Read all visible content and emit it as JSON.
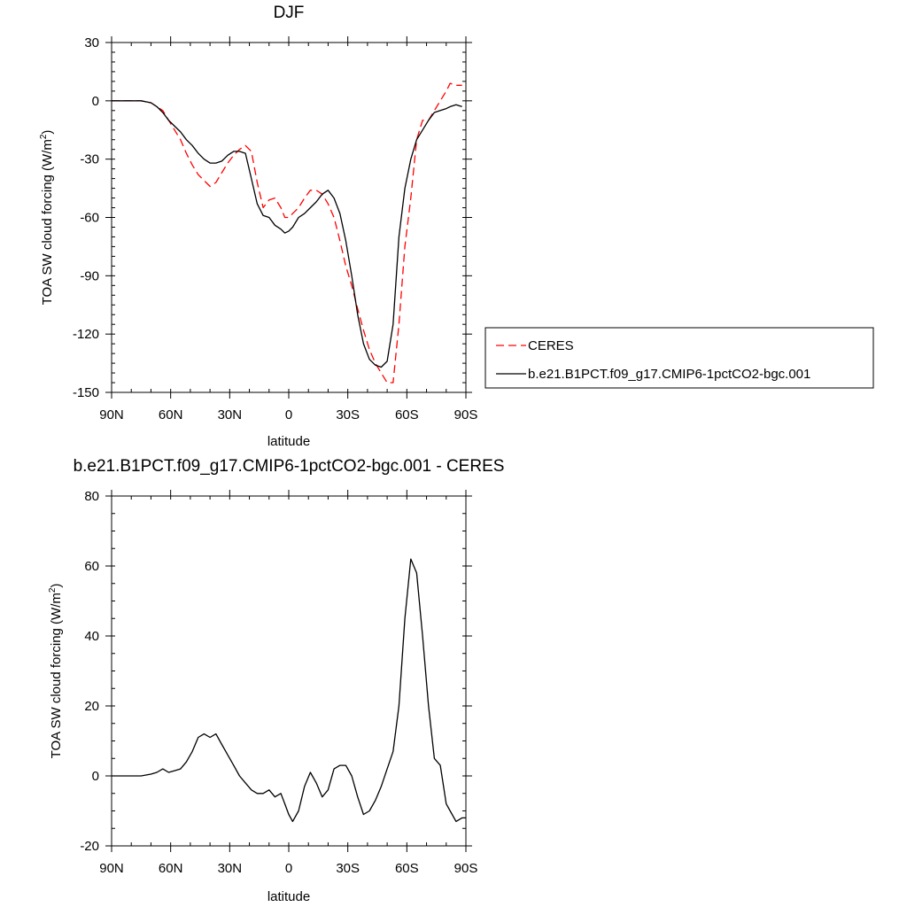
{
  "chart_data": [
    {
      "type": "line",
      "title": "DJF",
      "xlabel": "latitude",
      "ylabel": "TOA SW cloud forcing (W/m",
      "ylabel_sup": "2",
      "ylabel_close": ")",
      "xlim": [
        -90,
        90
      ],
      "ylim": [
        -150,
        30
      ],
      "xticks": [
        -90,
        -60,
        -30,
        0,
        30,
        60,
        90
      ],
      "xtick_labels": [
        "90N",
        "60N",
        "30N",
        "0",
        "30S",
        "60S",
        "90S"
      ],
      "yticks": [
        30,
        0,
        -30,
        -60,
        -90,
        -120,
        -150
      ],
      "ytick_labels": [
        "30",
        "0",
        "-30",
        "-60",
        "-90",
        "-120",
        "-150"
      ],
      "grid": false,
      "legend_position": "right",
      "series": [
        {
          "name": "CERES",
          "color": "#ff0000",
          "dash": "dashed",
          "x": [
            -90,
            -85,
            -80,
            -75,
            -70,
            -67,
            -64,
            -61,
            -58,
            -55,
            -52,
            -49,
            -46,
            -43,
            -40,
            -37,
            -34,
            -31,
            -28,
            -25,
            -22,
            -19,
            -16,
            -13,
            -10,
            -7,
            -4,
            -2,
            0,
            2,
            5,
            8,
            11,
            14,
            17,
            20,
            23,
            26,
            29,
            32,
            35,
            38,
            41,
            44,
            47,
            50,
            53,
            56,
            59,
            62,
            65,
            68,
            71,
            74,
            77,
            80,
            82,
            85,
            88
          ],
          "y": [
            0,
            0,
            0,
            0,
            -1,
            -3,
            -5,
            -10,
            -15,
            -20,
            -27,
            -33,
            -38,
            -41,
            -44,
            -42,
            -37,
            -32,
            -28,
            -25,
            -23,
            -26,
            -42,
            -55,
            -51,
            -50,
            -55,
            -60,
            -60,
            -58,
            -55,
            -50,
            -46,
            -46,
            -48,
            -53,
            -60,
            -72,
            -85,
            -95,
            -107,
            -118,
            -128,
            -135,
            -140,
            -145,
            -145,
            -115,
            -75,
            -50,
            -20,
            -10,
            -10,
            -5,
            0,
            5,
            9,
            8,
            8
          ]
        },
        {
          "name": "b.e21.B1PCT.f09_g17.CMIP6-1pctCO2-bgc.001",
          "color": "#000000",
          "dash": "solid",
          "x": [
            -90,
            -85,
            -80,
            -75,
            -70,
            -67,
            -64,
            -61,
            -58,
            -55,
            -52,
            -49,
            -46,
            -43,
            -40,
            -37,
            -34,
            -31,
            -28,
            -25,
            -22,
            -19,
            -16,
            -13,
            -10,
            -7,
            -4,
            -2,
            0,
            2,
            5,
            8,
            11,
            14,
            17,
            20,
            23,
            26,
            29,
            32,
            35,
            38,
            41,
            44,
            47,
            50,
            53,
            56,
            59,
            62,
            65,
            68,
            71,
            74,
            77,
            80,
            82,
            85,
            88
          ],
          "y": [
            0,
            0,
            0,
            0,
            -1,
            -3,
            -6,
            -10,
            -13,
            -16,
            -20,
            -23,
            -27,
            -30,
            -32,
            -32,
            -31,
            -28,
            -26,
            -26,
            -27,
            -40,
            -53,
            -59,
            -60,
            -64,
            -66,
            -68,
            -67,
            -65,
            -60,
            -58,
            -55,
            -52,
            -48,
            -46,
            -50,
            -58,
            -72,
            -90,
            -110,
            -125,
            -133,
            -136,
            -137,
            -134,
            -115,
            -70,
            -45,
            -30,
            -20,
            -15,
            -10,
            -6,
            -5,
            -4,
            -3,
            -2,
            -3
          ]
        }
      ]
    },
    {
      "type": "line",
      "title": "b.e21.B1PCT.f09_g17.CMIP6-1pctCO2-bgc.001 - CERES",
      "xlabel": "latitude",
      "ylabel": "TOA SW cloud forcing (W/m",
      "ylabel_sup": "2",
      "ylabel_close": ")",
      "xlim": [
        -90,
        90
      ],
      "ylim": [
        -20,
        80
      ],
      "xticks": [
        -90,
        -60,
        -30,
        0,
        30,
        60,
        90
      ],
      "xtick_labels": [
        "90N",
        "60N",
        "30N",
        "0",
        "30S",
        "60S",
        "90S"
      ],
      "yticks": [
        80,
        60,
        40,
        20,
        0,
        -20
      ],
      "ytick_labels": [
        "80",
        "60",
        "40",
        "20",
        "0",
        "-20"
      ],
      "grid": false,
      "series": [
        {
          "color": "#000000",
          "dash": "solid",
          "x": [
            -90,
            -85,
            -80,
            -75,
            -70,
            -67,
            -64,
            -61,
            -58,
            -55,
            -52,
            -49,
            -46,
            -43,
            -40,
            -37,
            -34,
            -31,
            -28,
            -25,
            -22,
            -19,
            -16,
            -13,
            -10,
            -7,
            -4,
            -2,
            0,
            2,
            5,
            8,
            11,
            14,
            17,
            20,
            23,
            26,
            29,
            32,
            35,
            38,
            41,
            44,
            47,
            50,
            53,
            56,
            59,
            62,
            65,
            68,
            71,
            74,
            77,
            80,
            82,
            85,
            88,
            90
          ],
          "y": [
            0,
            0,
            0,
            0,
            0.5,
            1,
            2,
            1,
            1.5,
            2,
            4,
            7,
            11,
            12,
            11,
            12,
            9,
            6,
            3,
            0,
            -2,
            -4,
            -5,
            -5,
            -4,
            -6,
            -5,
            -8,
            -11,
            -13,
            -10,
            -3,
            1,
            -2,
            -6,
            -4,
            2,
            3,
            3,
            0,
            -6,
            -11,
            -10,
            -7,
            -3,
            2,
            7,
            20,
            45,
            62,
            58,
            40,
            20,
            5,
            3,
            -8,
            -10,
            -13,
            -12,
            -12
          ]
        }
      ]
    }
  ]
}
